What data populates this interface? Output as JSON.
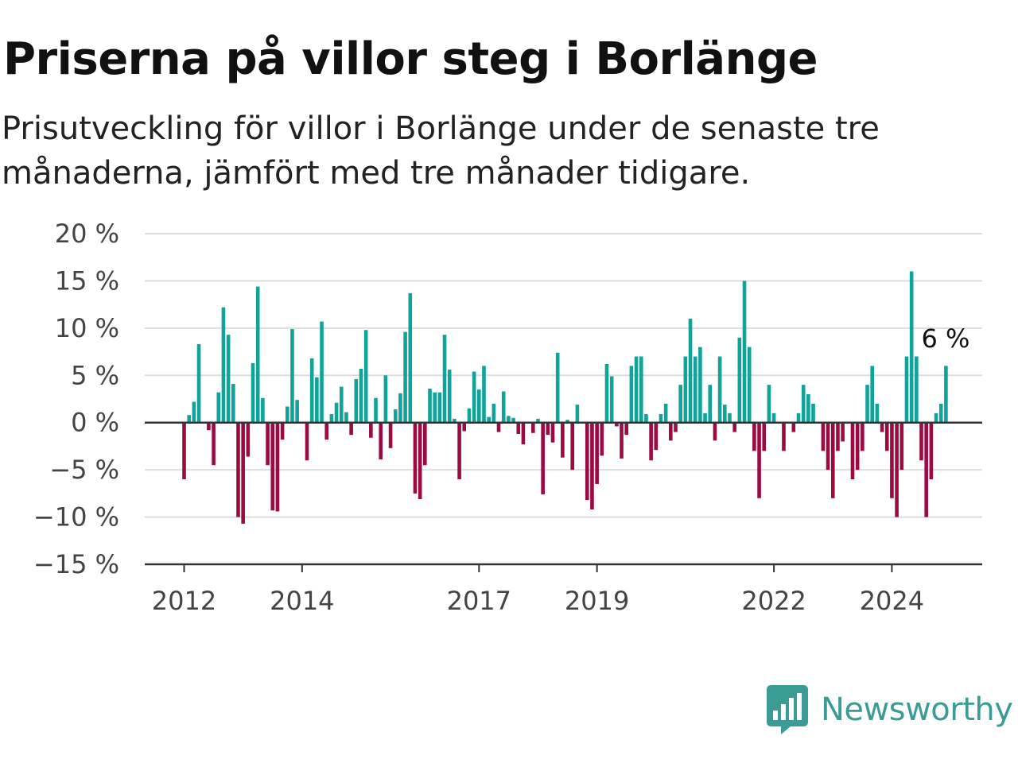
{
  "title": "Priserna på villor steg i Borlänge",
  "subtitle": "Prisutveckling för villor i Borlänge under de senaste tre månaderna, jämfört med tre månader tidigare.",
  "brand": {
    "name": "Newsworthy",
    "icon": "newsworthy-logo-icon",
    "color": "#3a9c94"
  },
  "colors": {
    "positive": "#0fa39a",
    "negative": "#9c0a42",
    "grid": "#dddddd",
    "axis": "#333333"
  },
  "chart_data": {
    "type": "bar",
    "title": "",
    "xlabel": "",
    "ylabel": "",
    "ylim": [
      -15,
      20
    ],
    "y_ticks": [
      20,
      15,
      10,
      5,
      0,
      -5,
      -10,
      -15
    ],
    "y_tick_labels": [
      "20 %",
      "15 %",
      "10 %",
      "5 %",
      "0 %",
      "−5 %",
      "−10 %",
      "−15 %"
    ],
    "x_ticks": [
      "2012",
      "2014",
      "2017",
      "2019",
      "2022",
      "2024"
    ],
    "grid": true,
    "legend": "none",
    "end_label": "6 %",
    "series": [
      {
        "start": "2012-01",
        "frequency": "monthly",
        "unit": "%",
        "values": [
          -6,
          0.8,
          2.2,
          8.3,
          0,
          -0.8,
          -4.5,
          3.2,
          12.2,
          9.3,
          4.1,
          -10,
          -10.7,
          -3.6,
          6.3,
          14.4,
          2.6,
          -4.5,
          -9.3,
          -9.4,
          -1.8,
          1.7,
          9.9,
          2.4,
          0,
          -4,
          6.8,
          4.8,
          10.7,
          -1.8,
          0.9,
          2.1,
          3.8,
          1.1,
          -1.3,
          4.6,
          5.7,
          9.8,
          -1.6,
          2.6,
          -3.9,
          5,
          -2.7,
          1.4,
          3.1,
          9.6,
          13.7,
          -7.5,
          -8.1,
          -4.5,
          3.6,
          3.2,
          3.2,
          9.3,
          5.6,
          0.4,
          -6,
          -0.9,
          1.5,
          5.4,
          3.5,
          6,
          0.6,
          2,
          -1,
          3.3,
          0.7,
          0.5,
          -1.2,
          -2.3,
          0,
          -1.1,
          0.4,
          -7.6,
          -1.3,
          -2.1,
          7.4,
          -3.7,
          0.3,
          -5,
          1.9,
          0,
          -8.2,
          -9.2,
          -6.5,
          -3.5,
          6.2,
          4.9,
          -0.4,
          -3.8,
          -1.3,
          6,
          7,
          7,
          0.9,
          -4,
          -2.9,
          0.9,
          2,
          -1.9,
          -1,
          4,
          7,
          11,
          7,
          8,
          1,
          4,
          -1.9,
          7,
          1.9,
          1,
          -1,
          9,
          15,
          8,
          -3,
          -8,
          -3,
          4,
          1,
          0,
          -3,
          0,
          -1,
          1,
          4,
          3,
          2,
          0,
          -3,
          -5,
          -8,
          -3,
          -2,
          0,
          -6,
          -5,
          -3,
          4,
          6,
          2,
          -1,
          -3,
          -8,
          -10,
          -5,
          7,
          16,
          7,
          -4,
          -10,
          -6,
          1,
          2,
          6
        ]
      }
    ]
  }
}
